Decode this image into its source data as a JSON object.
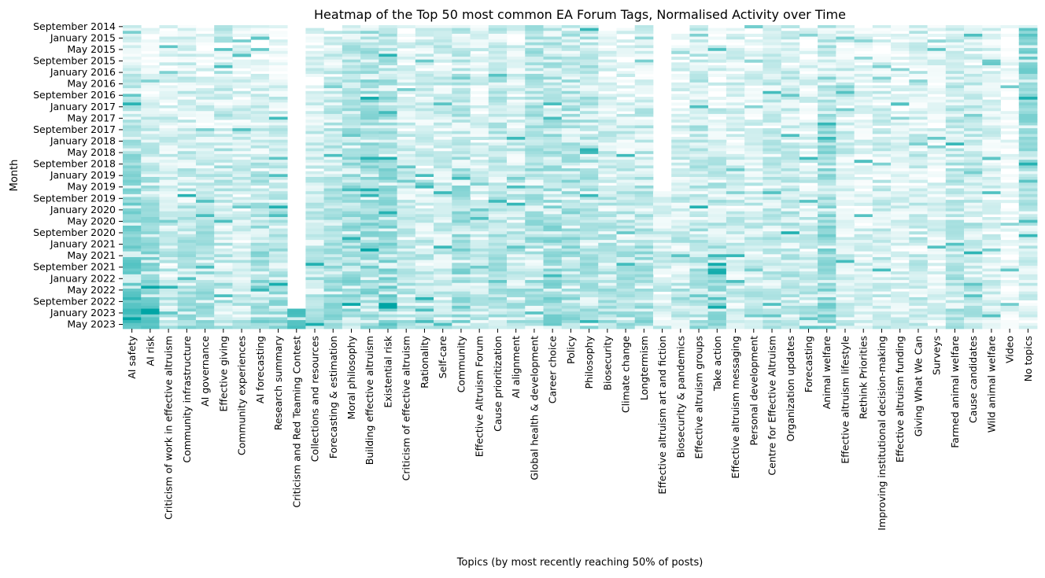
{
  "chart_data": {
    "type": "heatmap",
    "title": "Heatmap of the Top 50 most common EA Forum Tags, Normalised Activity over Time",
    "xlabel": "Topics (by most recently reaching 50% of posts)",
    "ylabel": "Month",
    "color_low": "#ffffff",
    "color_high": "#00a5a5",
    "value_range": [
      0,
      1
    ],
    "colorbar": false,
    "grid": false,
    "month_range": [
      "September 2014",
      "June 2023"
    ],
    "y_tick_labels": [
      "September 2014",
      "January 2015",
      "May 2015",
      "September 2015",
      "January 2016",
      "May 2016",
      "September 2016",
      "January 2017",
      "May 2017",
      "September 2017",
      "January 2018",
      "May 2018",
      "September 2018",
      "January 2019",
      "May 2019",
      "September 2019",
      "January 2020",
      "May 2020",
      "September 2020",
      "January 2021",
      "May 2021",
      "September 2021",
      "January 2022",
      "May 2022",
      "September 2022",
      "January 2023",
      "May 2023"
    ],
    "topics": [
      "AI safety",
      "AI risk",
      "Criticism of work in effective altruism",
      "Community infrastructure",
      "AI governance",
      "Effective giving",
      "Community experiences",
      "AI forecasting",
      "Research summary",
      "Criticism and Red Teaming Contest",
      "Collections and resources",
      "Forecasting & estimation",
      "Moral philosophy",
      "Building effective altruism",
      "Existential risk",
      "Criticism of effective altruism",
      "Rationality",
      "Self-care",
      "Community",
      "Effective Altruism Forum",
      "Cause prioritization",
      "AI alignment",
      "Global health & development",
      "Career choice",
      "Policy",
      "Philosophy",
      "Biosecurity",
      "Climate change",
      "Longtermism",
      "Effective altruism art and fiction",
      "Biosecurity & pandemics",
      "Effective altruism groups",
      "Take action",
      "Effective altruism messaging",
      "Personal development",
      "Centre for Effective Altruism",
      "Organization updates",
      "Forecasting",
      "Animal welfare",
      "Effective altruism lifestyle",
      "Rethink Priorities",
      "Improving institutional decision-making",
      "Effective altruism funding",
      "Giving What We Can",
      "Surveys",
      "Farmed animal welfare",
      "Cause candidates",
      "Wild animal welfare",
      "Video",
      "No topics"
    ],
    "topic_profiles": [
      {
        "start": 0.0,
        "base": 0.12,
        "trend": 0.6,
        "noise": 0.25
      },
      {
        "start": 0.0,
        "base": 0.04,
        "trend": 0.55,
        "noise": 0.2
      },
      {
        "start": 0.0,
        "base": 0.1,
        "trend": 0.15,
        "noise": 0.3
      },
      {
        "start": 0.0,
        "base": 0.12,
        "trend": 0.25,
        "noise": 0.3
      },
      {
        "start": 0.0,
        "base": 0.05,
        "trend": 0.4,
        "noise": 0.25
      },
      {
        "start": 0.0,
        "base": 0.2,
        "trend": 0.05,
        "noise": 0.4
      },
      {
        "start": 0.0,
        "base": 0.1,
        "trend": 0.15,
        "noise": 0.3
      },
      {
        "start": 0.0,
        "base": 0.04,
        "trend": 0.45,
        "noise": 0.3
      },
      {
        "start": 0.0,
        "base": 0.1,
        "trend": 0.3,
        "noise": 0.3
      },
      {
        "start": 0.94,
        "base": 0.7,
        "trend": 0.0,
        "noise": 0.1
      },
      {
        "start": 0.0,
        "base": 0.08,
        "trend": 0.25,
        "noise": 0.3
      },
      {
        "start": 0.0,
        "base": 0.15,
        "trend": 0.25,
        "noise": 0.3
      },
      {
        "start": 0.0,
        "base": 0.22,
        "trend": 0.2,
        "noise": 0.35
      },
      {
        "start": 0.0,
        "base": 0.35,
        "trend": 0.1,
        "noise": 0.3
      },
      {
        "start": 0.0,
        "base": 0.3,
        "trend": 0.2,
        "noise": 0.3
      },
      {
        "start": 0.0,
        "base": 0.12,
        "trend": 0.2,
        "noise": 0.25
      },
      {
        "start": 0.0,
        "base": 0.15,
        "trend": 0.1,
        "noise": 0.3
      },
      {
        "start": 0.0,
        "base": 0.18,
        "trend": 0.05,
        "noise": 0.3
      },
      {
        "start": 0.0,
        "base": 0.2,
        "trend": 0.25,
        "noise": 0.35
      },
      {
        "start": 0.0,
        "base": 0.12,
        "trend": 0.1,
        "noise": 0.3
      },
      {
        "start": 0.0,
        "base": 0.25,
        "trend": 0.05,
        "noise": 0.3
      },
      {
        "start": 0.0,
        "base": 0.12,
        "trend": 0.2,
        "noise": 0.3
      },
      {
        "start": 0.0,
        "base": 0.28,
        "trend": 0.05,
        "noise": 0.35
      },
      {
        "start": 0.0,
        "base": 0.22,
        "trend": 0.25,
        "noise": 0.35
      },
      {
        "start": 0.0,
        "base": 0.25,
        "trend": 0.15,
        "noise": 0.35
      },
      {
        "start": 0.0,
        "base": 0.28,
        "trend": 0.05,
        "noise": 0.3
      },
      {
        "start": 0.0,
        "base": 0.08,
        "trend": 0.25,
        "noise": 0.3
      },
      {
        "start": 0.0,
        "base": 0.08,
        "trend": 0.25,
        "noise": 0.3
      },
      {
        "start": 0.0,
        "base": 0.1,
        "trend": 0.3,
        "noise": 0.35
      },
      {
        "start": 0.55,
        "base": 0.1,
        "trend": 0.1,
        "noise": 0.25
      },
      {
        "start": 0.0,
        "base": 0.06,
        "trend": 0.25,
        "noise": 0.3
      },
      {
        "start": 0.0,
        "base": 0.22,
        "trend": 0.1,
        "noise": 0.35
      },
      {
        "start": 0.0,
        "base": 0.08,
        "trend": 0.3,
        "noise": 0.35
      },
      {
        "start": 0.0,
        "base": 0.12,
        "trend": 0.1,
        "noise": 0.3
      },
      {
        "start": 0.0,
        "base": 0.1,
        "trend": 0.15,
        "noise": 0.3
      },
      {
        "start": 0.0,
        "base": 0.2,
        "trend": 0.05,
        "noise": 0.3
      },
      {
        "start": 0.0,
        "base": 0.2,
        "trend": 0.1,
        "noise": 0.3
      },
      {
        "start": 0.0,
        "base": 0.06,
        "trend": 0.2,
        "noise": 0.3
      },
      {
        "start": 0.0,
        "base": 0.3,
        "trend": 0.15,
        "noise": 0.35
      },
      {
        "start": 0.0,
        "base": 0.18,
        "trend": 0.0,
        "noise": 0.3
      },
      {
        "start": 0.0,
        "base": 0.08,
        "trend": 0.1,
        "noise": 0.25
      },
      {
        "start": 0.0,
        "base": 0.12,
        "trend": 0.1,
        "noise": 0.3
      },
      {
        "start": 0.0,
        "base": 0.08,
        "trend": 0.1,
        "noise": 0.25
      },
      {
        "start": 0.0,
        "base": 0.18,
        "trend": 0.0,
        "noise": 0.35
      },
      {
        "start": 0.0,
        "base": 0.1,
        "trend": 0.05,
        "noise": 0.25
      },
      {
        "start": 0.0,
        "base": 0.2,
        "trend": 0.1,
        "noise": 0.3
      },
      {
        "start": 0.0,
        "base": 0.18,
        "trend": 0.1,
        "noise": 0.3
      },
      {
        "start": 0.0,
        "base": 0.12,
        "trend": 0.05,
        "noise": 0.25
      },
      {
        "start": 0.0,
        "base": 0.04,
        "trend": 0.05,
        "noise": 0.2
      },
      {
        "start": 0.0,
        "base": 0.55,
        "trend": -0.45,
        "noise": 0.25
      }
    ]
  }
}
